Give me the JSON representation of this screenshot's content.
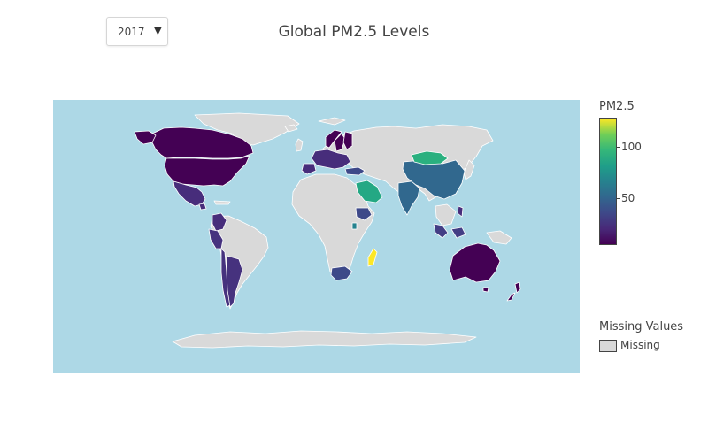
{
  "title": "Global PM2.5 Levels",
  "year_dropdown": {
    "selected": "2017",
    "arrow": "▼"
  },
  "colorbar": {
    "title": "PM2.5",
    "ticks": [
      "100",
      "50"
    ]
  },
  "missing_legend": {
    "title": "Missing Values",
    "label": "Missing"
  },
  "colors": {
    "ocean": "#add8e6",
    "missing": "#d9d9d9",
    "border": "#ffffff",
    "scale": [
      "#440154",
      "#3e4989",
      "#26828e",
      "#35b779",
      "#fde725"
    ]
  },
  "map_data": {
    "highlighted": [
      {
        "region": "Canada",
        "color": "#440154"
      },
      {
        "region": "United States",
        "color": "#440154"
      },
      {
        "region": "Mexico",
        "color": "#472d7b"
      },
      {
        "region": "Guatemala",
        "color": "#472d7b"
      },
      {
        "region": "Colombia",
        "color": "#472d7b"
      },
      {
        "region": "Peru",
        "color": "#46327e"
      },
      {
        "region": "Chile",
        "color": "#46327e"
      },
      {
        "region": "Argentina",
        "color": "#46327e"
      },
      {
        "region": "Sweden",
        "color": "#440154"
      },
      {
        "region": "Norway",
        "color": "#440154"
      },
      {
        "region": "Finland",
        "color": "#440154"
      },
      {
        "region": "Europe",
        "color": "#472d7b"
      },
      {
        "region": "Spain",
        "color": "#472d7b"
      },
      {
        "region": "Turkey",
        "color": "#3e4989"
      },
      {
        "region": "Saudi Arabia",
        "color": "#24a884"
      },
      {
        "region": "Ethiopia",
        "color": "#3e4989"
      },
      {
        "region": "Kenya",
        "color": "#26828e"
      },
      {
        "region": "South Africa",
        "color": "#3e4989"
      },
      {
        "region": "Madagascar",
        "color": "#fde725"
      },
      {
        "region": "India",
        "color": "#31688e"
      },
      {
        "region": "China",
        "color": "#31688e"
      },
      {
        "region": "Mongolia",
        "color": "#2ab07f"
      },
      {
        "region": "Indonesia",
        "color": "#433e85"
      },
      {
        "region": "Philippines",
        "color": "#472d7b"
      },
      {
        "region": "Australia",
        "color": "#440154"
      },
      {
        "region": "New Zealand",
        "color": "#440154"
      }
    ]
  }
}
